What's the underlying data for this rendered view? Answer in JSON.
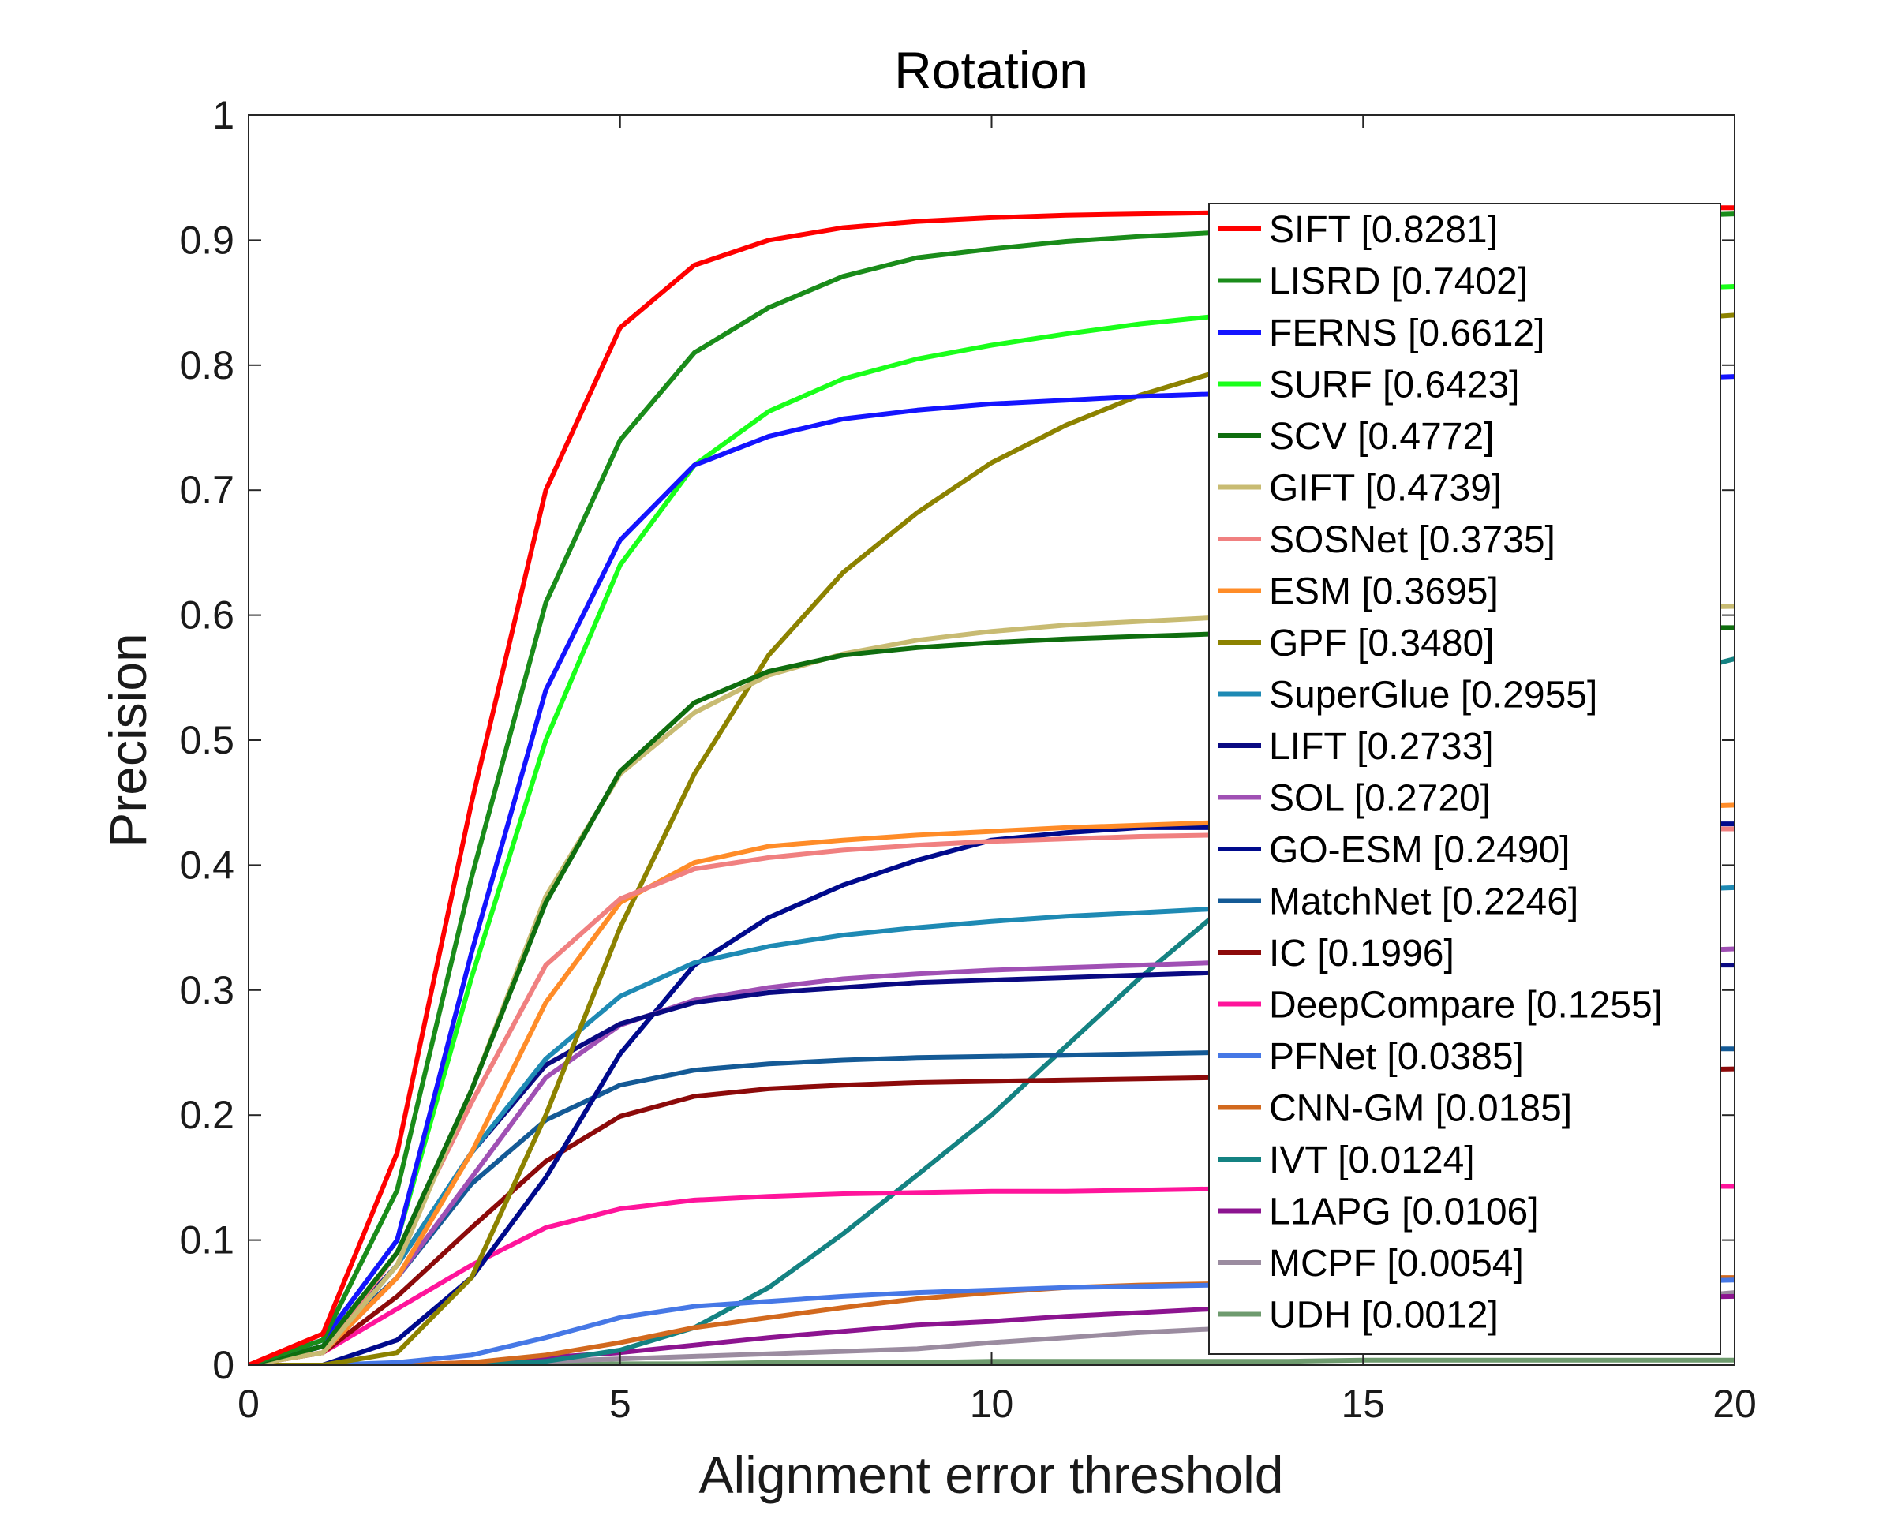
{
  "chart_data": {
    "type": "line",
    "title": "Rotation",
    "xlabel": "Alignment error threshold",
    "ylabel": "Precision",
    "xlim": [
      0,
      20
    ],
    "ylim": [
      0,
      1
    ],
    "xticks": [
      0,
      5,
      10,
      15,
      20
    ],
    "xtick_labels": [
      "0",
      "5",
      "10",
      "15",
      "20"
    ],
    "yticks": [
      0,
      0.1,
      0.2,
      0.3,
      0.4,
      0.5,
      0.6,
      0.7,
      0.8,
      0.9,
      1
    ],
    "ytick_labels": [
      "0",
      "0.1",
      "0.2",
      "0.3",
      "0.4",
      "0.5",
      "0.6",
      "0.7",
      "0.8",
      "0.9",
      "1"
    ],
    "grid": false,
    "legend_position": "right",
    "x": [
      0,
      1,
      2,
      3,
      4,
      5,
      6,
      7,
      8,
      9,
      10,
      11,
      12,
      13,
      14,
      15,
      16,
      17,
      18,
      19,
      20
    ],
    "series": [
      {
        "name": "SIFT [0.8281]",
        "color": "#ff0000",
        "values": [
          0,
          0.025,
          0.17,
          0.45,
          0.7,
          0.83,
          0.88,
          0.9,
          0.91,
          0.915,
          0.918,
          0.92,
          0.921,
          0.922,
          0.923,
          0.924,
          0.924,
          0.925,
          0.925,
          0.926,
          0.926
        ]
      },
      {
        "name": "LISRD [0.7402]",
        "color": "#1a8c1a",
        "values": [
          0,
          0.02,
          0.14,
          0.39,
          0.61,
          0.74,
          0.81,
          0.846,
          0.871,
          0.886,
          0.893,
          0.899,
          0.903,
          0.906,
          0.909,
          0.911,
          0.913,
          0.915,
          0.917,
          0.919,
          0.921
        ]
      },
      {
        "name": "FERNS [0.6612]",
        "color": "#1414ff",
        "values": [
          0,
          0.02,
          0.1,
          0.33,
          0.54,
          0.66,
          0.72,
          0.743,
          0.757,
          0.764,
          0.769,
          0.772,
          0.775,
          0.777,
          0.779,
          0.781,
          0.783,
          0.785,
          0.787,
          0.789,
          0.791
        ]
      },
      {
        "name": "SURF [0.6423]",
        "color": "#1aff1a",
        "values": [
          0,
          0.02,
          0.1,
          0.31,
          0.5,
          0.64,
          0.72,
          0.763,
          0.789,
          0.805,
          0.816,
          0.825,
          0.833,
          0.839,
          0.844,
          0.848,
          0.852,
          0.855,
          0.858,
          0.861,
          0.863
        ]
      },
      {
        "name": "SCV [0.4772]",
        "color": "#0f6e0f",
        "values": [
          0,
          0.015,
          0.09,
          0.22,
          0.37,
          0.475,
          0.53,
          0.555,
          0.568,
          0.574,
          0.578,
          0.581,
          0.583,
          0.585,
          0.586,
          0.587,
          0.588,
          0.589,
          0.589,
          0.59,
          0.59
        ]
      },
      {
        "name": "GIFT [0.4739]",
        "color": "#c8bb72",
        "values": [
          0,
          0.01,
          0.08,
          0.22,
          0.375,
          0.473,
          0.522,
          0.552,
          0.569,
          0.58,
          0.587,
          0.592,
          0.595,
          0.598,
          0.6,
          0.602,
          0.603,
          0.604,
          0.605,
          0.606,
          0.607
        ]
      },
      {
        "name": "SOSNet [0.3735]",
        "color": "#f08080",
        "values": [
          0,
          0.01,
          0.09,
          0.21,
          0.32,
          0.373,
          0.397,
          0.406,
          0.412,
          0.416,
          0.419,
          0.421,
          0.423,
          0.424,
          0.425,
          0.426,
          0.427,
          0.428,
          0.428,
          0.429,
          0.429
        ]
      },
      {
        "name": "ESM [0.3695]",
        "color": "#ff8c28",
        "values": [
          0,
          0.01,
          0.07,
          0.17,
          0.29,
          0.37,
          0.402,
          0.415,
          0.42,
          0.424,
          0.427,
          0.43,
          0.432,
          0.434,
          0.436,
          0.438,
          0.44,
          0.442,
          0.444,
          0.446,
          0.448
        ]
      },
      {
        "name": "GPF [0.3480]",
        "color": "#8c8200",
        "values": [
          0,
          0.0,
          0.01,
          0.07,
          0.2,
          0.35,
          0.473,
          0.568,
          0.634,
          0.682,
          0.722,
          0.752,
          0.776,
          0.794,
          0.806,
          0.815,
          0.822,
          0.828,
          0.832,
          0.836,
          0.84
        ]
      },
      {
        "name": "SuperGlue [0.2955]",
        "color": "#1e8ab4",
        "values": [
          0,
          0.01,
          0.08,
          0.17,
          0.245,
          0.295,
          0.322,
          0.335,
          0.344,
          0.35,
          0.355,
          0.359,
          0.362,
          0.365,
          0.367,
          0.37,
          0.372,
          0.375,
          0.378,
          0.38,
          0.382
        ]
      },
      {
        "name": "LIFT [0.2733]",
        "color": "#0a0a82",
        "values": [
          0,
          0.015,
          0.08,
          0.17,
          0.24,
          0.273,
          0.29,
          0.298,
          0.302,
          0.306,
          0.308,
          0.31,
          0.312,
          0.314,
          0.315,
          0.316,
          0.317,
          0.318,
          0.319,
          0.32,
          0.32
        ]
      },
      {
        "name": "SOL [0.2720]",
        "color": "#a050b4",
        "values": [
          0,
          0.01,
          0.07,
          0.15,
          0.23,
          0.272,
          0.292,
          0.302,
          0.309,
          0.313,
          0.316,
          0.318,
          0.32,
          0.322,
          0.324,
          0.325,
          0.327,
          0.328,
          0.33,
          0.331,
          0.333
        ]
      },
      {
        "name": "GO-ESM [0.2490]",
        "color": "#000a8c",
        "values": [
          0,
          0.0,
          0.02,
          0.07,
          0.15,
          0.249,
          0.32,
          0.358,
          0.384,
          0.404,
          0.42,
          0.426,
          0.43,
          0.43,
          0.431,
          0.431,
          0.432,
          0.432,
          0.432,
          0.433,
          0.433
        ]
      },
      {
        "name": "MatchNet [0.2246]",
        "color": "#145a96",
        "values": [
          0,
          0.015,
          0.07,
          0.145,
          0.196,
          0.224,
          0.236,
          0.241,
          0.244,
          0.246,
          0.247,
          0.248,
          0.249,
          0.25,
          0.25,
          0.251,
          0.251,
          0.252,
          0.252,
          0.253,
          0.253
        ]
      },
      {
        "name": "IC [0.1996]",
        "color": "#8c0a0a",
        "values": [
          0,
          0.01,
          0.055,
          0.11,
          0.163,
          0.199,
          0.215,
          0.221,
          0.224,
          0.226,
          0.227,
          0.228,
          0.229,
          0.23,
          0.231,
          0.232,
          0.233,
          0.234,
          0.235,
          0.236,
          0.237
        ]
      },
      {
        "name": "DeepCompare [0.1255]",
        "color": "#ff149b",
        "values": [
          0,
          0.01,
          0.045,
          0.08,
          0.11,
          0.125,
          0.132,
          0.135,
          0.137,
          0.138,
          0.139,
          0.139,
          0.14,
          0.141,
          0.141,
          0.142,
          0.142,
          0.143,
          0.143,
          0.143,
          0.143
        ]
      },
      {
        "name": "PFNet [0.0385]",
        "color": "#4678e6",
        "values": [
          0,
          0.0,
          0.002,
          0.008,
          0.022,
          0.038,
          0.047,
          0.051,
          0.055,
          0.058,
          0.06,
          0.062,
          0.063,
          0.064,
          0.065,
          0.066,
          0.066,
          0.067,
          0.067,
          0.067,
          0.068
        ]
      },
      {
        "name": "CNN-GM [0.0185]",
        "color": "#d2691e",
        "values": [
          0,
          0.0,
          0.0,
          0.002,
          0.008,
          0.018,
          0.03,
          0.038,
          0.046,
          0.053,
          0.058,
          0.062,
          0.064,
          0.065,
          0.066,
          0.067,
          0.068,
          0.069,
          0.069,
          0.07,
          0.07
        ]
      },
      {
        "name": "IVT [0.0124]",
        "color": "#148282",
        "values": [
          0,
          0.0,
          0.0,
          0.0,
          0.003,
          0.012,
          0.03,
          0.062,
          0.105,
          0.152,
          0.2,
          0.255,
          0.31,
          0.36,
          0.41,
          0.455,
          0.49,
          0.515,
          0.535,
          0.55,
          0.565
        ]
      },
      {
        "name": "L1APG [0.0106]",
        "color": "#8c1490",
        "values": [
          0,
          0.0,
          0.0,
          0.002,
          0.006,
          0.01,
          0.016,
          0.022,
          0.027,
          0.032,
          0.035,
          0.039,
          0.042,
          0.045,
          0.047,
          0.049,
          0.051,
          0.052,
          0.053,
          0.054,
          0.055
        ]
      },
      {
        "name": "MCPF [0.0054]",
        "color": "#9b8ca0",
        "values": [
          0,
          0.0,
          0.0,
          0.001,
          0.003,
          0.005,
          0.007,
          0.009,
          0.011,
          0.013,
          0.018,
          0.022,
          0.026,
          0.029,
          0.032,
          0.035,
          0.038,
          0.043,
          0.048,
          0.053,
          0.058
        ]
      },
      {
        "name": "UDH [0.0012]",
        "color": "#6e9b6e",
        "values": [
          0,
          0.0,
          0.0,
          0.0,
          0.0,
          0.001,
          0.001,
          0.002,
          0.002,
          0.002,
          0.003,
          0.003,
          0.003,
          0.003,
          0.003,
          0.004,
          0.004,
          0.004,
          0.004,
          0.004,
          0.004
        ]
      }
    ]
  }
}
